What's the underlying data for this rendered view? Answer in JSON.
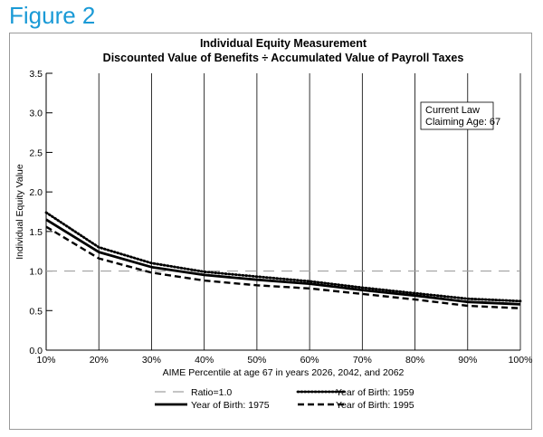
{
  "figure_label": "Figure 2",
  "chart_data": {
    "type": "line",
    "title": "Individual Equity Measurement",
    "subtitle": "Discounted Value of Benefits ÷ Accumulated Value of Payroll Taxes",
    "xlabel": "AIME Percentile at age 67 in years 2026, 2042, and 2062",
    "ylabel": "Individual Equity Value",
    "x": [
      10,
      20,
      30,
      40,
      50,
      60,
      70,
      80,
      90,
      100
    ],
    "x_tick_labels": [
      "10%",
      "20%",
      "30%",
      "40%",
      "50%",
      "60%",
      "70%",
      "80%",
      "90%",
      "100%"
    ],
    "y_ticks": [
      0.0,
      0.5,
      1.0,
      1.5,
      2.0,
      2.5,
      3.0,
      3.5
    ],
    "y_tick_labels": [
      "0.0",
      "0.5",
      "1.0",
      "1.5",
      "2.0",
      "2.5",
      "3.0",
      "3.5"
    ],
    "ylim": [
      0,
      3.5
    ],
    "xlim": [
      10,
      100
    ],
    "grid": "vertical",
    "annotation": {
      "line1": "Current Law",
      "line2": "Claiming Age: 67"
    },
    "reference_line": {
      "name": "Ratio=1.0",
      "value": 1.0,
      "style": "long-dash",
      "color": "#a0a0a0"
    },
    "series": [
      {
        "name": "Year of Birth: 1959",
        "style": "dotted",
        "color": "#000000",
        "values": [
          1.74,
          1.3,
          1.1,
          0.99,
          0.93,
          0.87,
          0.79,
          0.72,
          0.65,
          0.62
        ]
      },
      {
        "name": "Year of Birth: 1975",
        "style": "solid",
        "color": "#000000",
        "values": [
          1.65,
          1.24,
          1.05,
          0.95,
          0.89,
          0.84,
          0.76,
          0.69,
          0.61,
          0.58
        ]
      },
      {
        "name": "Year of Birth: 1995",
        "style": "dashed",
        "color": "#000000",
        "values": [
          1.56,
          1.16,
          0.98,
          0.88,
          0.82,
          0.78,
          0.71,
          0.64,
          0.56,
          0.53
        ]
      }
    ],
    "legend_placement": "bottom"
  }
}
